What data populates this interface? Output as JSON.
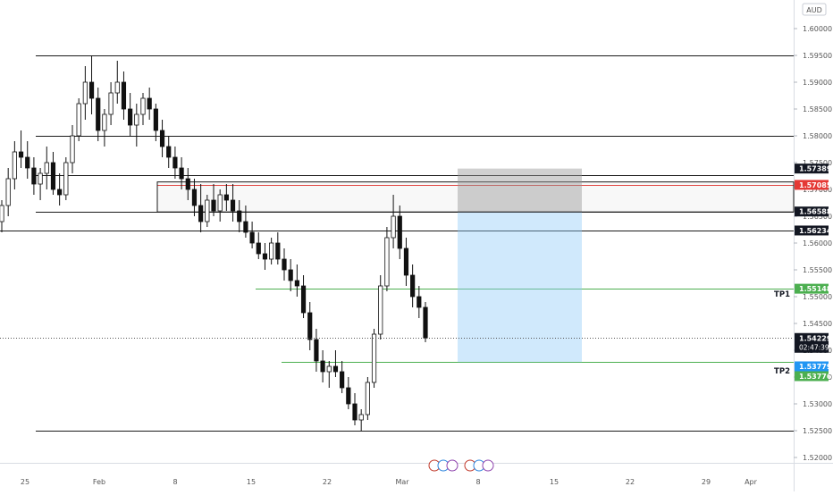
{
  "currency_label": "AUD",
  "chart_data": {
    "type": "candlestick",
    "x_ticks": [
      "25",
      "Feb",
      "8",
      "15",
      "22",
      "Mar",
      "8",
      "15",
      "22",
      "29",
      "Apr"
    ],
    "y_ticks": [
      "1.60000",
      "1.59500",
      "1.59000",
      "1.58500",
      "1.58000",
      "1.57500",
      "1.57000",
      "1.56500",
      "1.56000",
      "1.55500",
      "1.55000",
      "1.54500",
      "1.54000",
      "1.53500",
      "1.53000",
      "1.52500",
      "1.52000"
    ],
    "y_range": [
      1.5185,
      1.602
    ],
    "horizontal_levels": [
      1.595,
      1.58,
      1.5658,
      1.5623,
      1.525
    ],
    "zone": {
      "top": 1.5714,
      "bottom": 1.5658
    },
    "red_level": 1.57085,
    "tp_levels": [
      {
        "label": "TP1",
        "price": 1.55148,
        "price_label": "1.55148"
      },
      {
        "label": "TP2",
        "price": 1.53779,
        "price_label": "1.53779"
      }
    ],
    "position_tool": {
      "stop_top": 1.57389,
      "entry": 1.5658,
      "target": 1.53779
    },
    "price_labels": [
      {
        "value": "1.57389",
        "price": 1.57389,
        "style": "dark"
      },
      {
        "value": "1.57085",
        "price": 1.57085,
        "style": "red"
      },
      {
        "value": "1.56588",
        "price": 1.56588,
        "style": "dark"
      },
      {
        "value": "1.56234",
        "price": 1.56234,
        "style": "dark"
      },
      {
        "value": "1.55148",
        "price": 1.55148,
        "style": "green"
      },
      {
        "value": "1.54229",
        "price": 1.54229,
        "style": "dark"
      },
      {
        "value": "1.53779",
        "price": 1.53779,
        "style": "blue"
      },
      {
        "value": "1.53776",
        "price": 1.53776,
        "style": "green"
      }
    ],
    "countdown": "02:47:39",
    "last_price": 1.54229,
    "candles": [
      [
        1.564,
        1.568,
        1.562,
        1.567
      ],
      [
        1.567,
        1.574,
        1.565,
        1.572
      ],
      [
        1.572,
        1.579,
        1.57,
        1.577
      ],
      [
        1.577,
        1.581,
        1.574,
        1.576
      ],
      [
        1.576,
        1.579,
        1.572,
        1.574
      ],
      [
        1.574,
        1.576,
        1.569,
        1.571
      ],
      [
        1.571,
        1.574,
        1.568,
        1.573
      ],
      [
        1.573,
        1.578,
        1.57,
        1.575
      ],
      [
        1.575,
        1.577,
        1.569,
        1.57
      ],
      [
        1.57,
        1.573,
        1.567,
        1.569
      ],
      [
        1.569,
        1.576,
        1.568,
        1.575
      ],
      [
        1.575,
        1.582,
        1.573,
        1.58
      ],
      [
        1.58,
        1.587,
        1.579,
        1.586
      ],
      [
        1.586,
        1.593,
        1.583,
        1.59
      ],
      [
        1.59,
        1.595,
        1.584,
        1.587
      ],
      [
        1.587,
        1.589,
        1.579,
        1.581
      ],
      [
        1.581,
        1.585,
        1.578,
        1.584
      ],
      [
        1.584,
        1.59,
        1.582,
        1.588
      ],
      [
        1.588,
        1.594,
        1.586,
        1.59
      ],
      [
        1.59,
        1.592,
        1.583,
        1.585
      ],
      [
        1.585,
        1.588,
        1.58,
        1.582
      ],
      [
        1.582,
        1.586,
        1.578,
        1.584
      ],
      [
        1.584,
        1.588,
        1.582,
        1.587
      ],
      [
        1.587,
        1.589,
        1.583,
        1.585
      ],
      [
        1.585,
        1.586,
        1.579,
        1.581
      ],
      [
        1.581,
        1.583,
        1.576,
        1.578
      ],
      [
        1.578,
        1.58,
        1.574,
        1.576
      ],
      [
        1.576,
        1.578,
        1.572,
        1.574
      ],
      [
        1.574,
        1.576,
        1.57,
        1.572
      ],
      [
        1.572,
        1.574,
        1.568,
        1.57
      ],
      [
        1.57,
        1.572,
        1.565,
        1.567
      ],
      [
        1.567,
        1.571,
        1.562,
        1.564
      ],
      [
        1.564,
        1.569,
        1.563,
        1.568
      ],
      [
        1.568,
        1.571,
        1.565,
        1.566
      ],
      [
        1.566,
        1.57,
        1.564,
        1.569
      ],
      [
        1.569,
        1.571,
        1.566,
        1.568
      ],
      [
        1.568,
        1.571,
        1.564,
        1.566
      ],
      [
        1.566,
        1.568,
        1.562,
        1.564
      ],
      [
        1.564,
        1.567,
        1.561,
        1.562
      ],
      [
        1.562,
        1.564,
        1.559,
        1.56
      ],
      [
        1.56,
        1.562,
        1.557,
        1.558
      ],
      [
        1.558,
        1.56,
        1.555,
        1.557
      ],
      [
        1.557,
        1.561,
        1.556,
        1.56
      ],
      [
        1.56,
        1.562,
        1.556,
        1.557
      ],
      [
        1.557,
        1.559,
        1.553,
        1.555
      ],
      [
        1.555,
        1.557,
        1.551,
        1.553
      ],
      [
        1.553,
        1.556,
        1.55,
        1.552
      ],
      [
        1.552,
        1.554,
        1.546,
        1.547
      ],
      [
        1.547,
        1.549,
        1.54,
        1.542
      ],
      [
        1.542,
        1.544,
        1.536,
        1.538
      ],
      [
        1.538,
        1.54,
        1.534,
        1.536
      ],
      [
        1.536,
        1.538,
        1.533,
        1.537
      ],
      [
        1.537,
        1.54,
        1.535,
        1.536
      ],
      [
        1.536,
        1.538,
        1.532,
        1.533
      ],
      [
        1.533,
        1.535,
        1.529,
        1.53
      ],
      [
        1.53,
        1.532,
        1.526,
        1.527
      ],
      [
        1.527,
        1.529,
        1.525,
        1.528
      ],
      [
        1.528,
        1.535,
        1.527,
        1.534
      ],
      [
        1.534,
        1.544,
        1.533,
        1.543
      ],
      [
        1.543,
        1.554,
        1.542,
        1.552
      ],
      [
        1.552,
        1.563,
        1.551,
        1.561
      ],
      [
        1.561,
        1.569,
        1.559,
        1.565
      ],
      [
        1.565,
        1.567,
        1.557,
        1.559
      ],
      [
        1.559,
        1.561,
        1.552,
        1.554
      ],
      [
        1.554,
        1.556,
        1.548,
        1.55
      ],
      [
        1.55,
        1.552,
        1.546,
        1.548
      ],
      [
        1.548,
        1.549,
        1.5415,
        1.5423
      ]
    ]
  }
}
